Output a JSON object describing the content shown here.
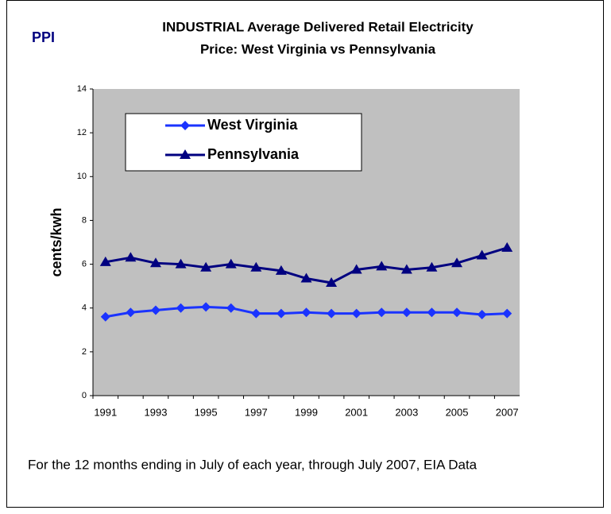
{
  "logo": "PPI",
  "footnote": "For the 12 months ending in July of each year, through July 2007, EIA Data",
  "chart_data": {
    "type": "line",
    "title": [
      "INDUSTRIAL Average Delivered Retail Electricity",
      "Price: West Virginia vs Pennsylvania"
    ],
    "y_label": "cents/kwh",
    "categories": [
      "1991",
      null,
      "1993",
      null,
      "1995",
      null,
      "1997",
      null,
      "1999",
      null,
      "2001",
      null,
      "2003",
      null,
      "2005",
      null,
      "2007"
    ],
    "series": [
      {
        "name": "West Virginia",
        "color": "#1a33ff",
        "marker": "diamond",
        "values": [
          3.6,
          3.8,
          3.9,
          4.0,
          4.05,
          4.0,
          3.75,
          3.75,
          3.8,
          3.75,
          3.75,
          3.8,
          3.8,
          3.8,
          3.8,
          3.7,
          3.75
        ]
      },
      {
        "name": "Pennsylvania",
        "color": "#000080",
        "marker": "triangle",
        "values": [
          6.1,
          6.3,
          6.05,
          6.0,
          5.85,
          6.0,
          5.85,
          5.7,
          5.35,
          5.15,
          5.75,
          5.9,
          5.75,
          5.85,
          6.05,
          6.4,
          6.75
        ]
      }
    ],
    "ylim": [
      0,
      14
    ],
    "yticks": [
      0,
      2,
      4,
      6,
      8,
      10,
      12,
      14
    ],
    "legend": "upper left"
  }
}
